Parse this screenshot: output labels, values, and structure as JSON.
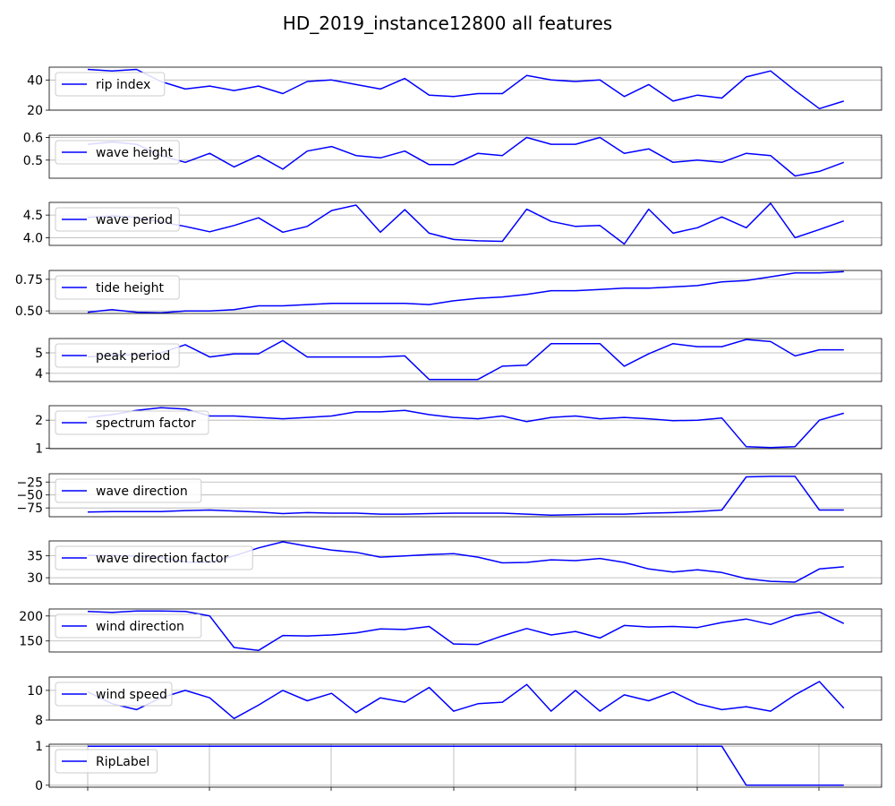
{
  "title": "HD_2019_instance12800 all features",
  "chart_data": {
    "type": "line",
    "title": "HD_2019_instance12800 all features",
    "line_color": "#0000ff",
    "grid": true,
    "legend_placement": "upper-left",
    "shared_x": true,
    "x_tick_labels_visible": false,
    "panels": [
      {
        "name": "rip index",
        "ylim": [
          20,
          48.5
        ],
        "yticks": [
          {
            "v": 20,
            "label": "20"
          },
          {
            "v": 40,
            "label": "40"
          }
        ],
        "values": [
          47,
          46,
          47,
          39,
          34,
          36,
          33,
          36,
          31,
          39,
          40,
          37,
          34,
          41,
          30,
          29,
          31,
          31,
          43,
          40,
          39,
          40,
          29,
          37,
          26,
          30,
          28,
          42,
          46,
          33,
          21,
          26
        ]
      },
      {
        "name": "wave height",
        "ylim": [
          0.42,
          0.61
        ],
        "yticks": [
          {
            "v": 0.5,
            "label": "0.5"
          },
          {
            "v": 0.6,
            "label": "0.6"
          }
        ],
        "values": [
          0.57,
          0.58,
          0.57,
          0.52,
          0.49,
          0.53,
          0.47,
          0.52,
          0.46,
          0.54,
          0.56,
          0.52,
          0.51,
          0.54,
          0.48,
          0.48,
          0.53,
          0.52,
          0.6,
          0.57,
          0.57,
          0.6,
          0.53,
          0.55,
          0.49,
          0.5,
          0.49,
          0.53,
          0.52,
          0.43,
          0.45,
          0.49
        ]
      },
      {
        "name": "wave period",
        "ylim": [
          3.83,
          4.78
        ],
        "yticks": [
          {
            "v": 4.0,
            "label": "4.0"
          },
          {
            "v": 4.5,
            "label": "4.5"
          }
        ],
        "values": [
          4.45,
          4.48,
          4.45,
          4.35,
          4.25,
          4.13,
          4.27,
          4.44,
          4.12,
          4.25,
          4.6,
          4.72,
          4.12,
          4.62,
          4.1,
          3.96,
          3.93,
          3.92,
          4.63,
          4.36,
          4.25,
          4.27,
          3.86,
          4.63,
          4.1,
          4.22,
          4.46,
          4.22,
          4.76,
          4.0,
          4.18,
          4.37
        ]
      },
      {
        "name": "tide height",
        "ylim": [
          0.48,
          0.82
        ],
        "yticks": [
          {
            "v": 0.5,
            "label": "0.50"
          },
          {
            "v": 0.75,
            "label": "0.75"
          }
        ],
        "values": [
          0.49,
          0.51,
          0.49,
          0.485,
          0.5,
          0.5,
          0.51,
          0.54,
          0.54,
          0.55,
          0.56,
          0.56,
          0.56,
          0.56,
          0.55,
          0.58,
          0.6,
          0.61,
          0.63,
          0.66,
          0.66,
          0.67,
          0.68,
          0.68,
          0.69,
          0.7,
          0.73,
          0.74,
          0.77,
          0.8,
          0.8,
          0.81
        ]
      },
      {
        "name": "peak period",
        "ylim": [
          3.6,
          5.7
        ],
        "yticks": [
          {
            "v": 4,
            "label": "4"
          },
          {
            "v": 5,
            "label": "5"
          }
        ],
        "values": [
          4.8,
          4.9,
          4.9,
          5.0,
          5.4,
          4.8,
          4.95,
          4.95,
          5.6,
          4.8,
          4.8,
          4.8,
          4.8,
          4.85,
          3.7,
          3.7,
          3.7,
          4.35,
          4.4,
          5.45,
          5.45,
          5.45,
          4.35,
          4.95,
          5.45,
          5.3,
          5.3,
          5.65,
          5.55,
          4.85,
          5.15,
          5.15
        ]
      },
      {
        "name": "spectrum factor",
        "ylim": [
          0.98,
          2.52
        ],
        "yticks": [
          {
            "v": 1,
            "label": "1"
          },
          {
            "v": 2,
            "label": "2"
          }
        ],
        "values": [
          2.1,
          2.2,
          2.35,
          2.45,
          2.4,
          2.15,
          2.15,
          2.1,
          2.05,
          2.1,
          2.15,
          2.3,
          2.3,
          2.35,
          2.2,
          2.1,
          2.05,
          2.15,
          1.95,
          2.1,
          2.15,
          2.05,
          2.1,
          2.05,
          1.98,
          2.0,
          2.08,
          1.05,
          1.02,
          1.05,
          2.0,
          2.25
        ]
      },
      {
        "name": "wave direction",
        "ylim": [
          -92,
          -9
        ],
        "yticks": [
          {
            "v": -75,
            "label": "−75"
          },
          {
            "v": -50,
            "label": "−50"
          },
          {
            "v": -25,
            "label": "−25"
          }
        ],
        "values": [
          -83,
          -82,
          -82,
          -82,
          -80,
          -79,
          -81,
          -83,
          -86,
          -84,
          -85,
          -85,
          -87,
          -87,
          -86,
          -85,
          -85,
          -85,
          -87,
          -89,
          -88,
          -87,
          -87,
          -85,
          -84,
          -82,
          -79,
          -15,
          -14,
          -14,
          -79,
          -79
        ]
      },
      {
        "name": "wave direction factor",
        "ylim": [
          28.6,
          38.4
        ],
        "yticks": [
          {
            "v": 30,
            "label": "30"
          },
          {
            "v": 35,
            "label": "35"
          }
        ],
        "values": [
          35.1,
          35.1,
          35.0,
          34.6,
          33.6,
          33.5,
          35.0,
          36.8,
          38.2,
          37.2,
          36.3,
          35.8,
          34.7,
          35.0,
          35.3,
          35.5,
          34.7,
          33.4,
          33.5,
          34.1,
          33.9,
          34.4,
          33.5,
          32.0,
          31.3,
          31.8,
          31.2,
          29.8,
          29.2,
          29.0,
          32.0,
          32.5
        ]
      },
      {
        "name": "wind direction",
        "ylim": [
          128,
          214
        ],
        "yticks": [
          {
            "v": 150,
            "label": "150"
          },
          {
            "v": 200,
            "label": "200"
          }
        ],
        "values": [
          209,
          207,
          210,
          210,
          209,
          200,
          137,
          131,
          161,
          160,
          162,
          166,
          174,
          173,
          179,
          144,
          143,
          160,
          175,
          162,
          169,
          156,
          181,
          178,
          179,
          177,
          187,
          194,
          183,
          201,
          208,
          185
        ]
      },
      {
        "name": "wind speed",
        "ylim": [
          8.0,
          10.9
        ],
        "yticks": [
          {
            "v": 8,
            "label": "8"
          },
          {
            "v": 10,
            "label": "10"
          }
        ],
        "values": [
          9.9,
          9.1,
          8.7,
          9.5,
          10.0,
          9.5,
          8.1,
          9.0,
          10.0,
          9.3,
          9.8,
          8.5,
          9.5,
          9.2,
          10.2,
          8.6,
          9.1,
          9.2,
          10.4,
          8.6,
          10.0,
          8.6,
          9.7,
          9.3,
          9.9,
          9.1,
          8.7,
          8.9,
          8.6,
          9.7,
          10.6,
          8.8
        ]
      },
      {
        "name": "RipLabel",
        "ylim": [
          -0.05,
          1.05
        ],
        "yticks": [
          {
            "v": 0,
            "label": "0"
          },
          {
            "v": 1,
            "label": "1"
          }
        ],
        "values": [
          1,
          1,
          1,
          1,
          1,
          1,
          1,
          1,
          1,
          1,
          1,
          1,
          1,
          1,
          1,
          1,
          1,
          1,
          1,
          1,
          1,
          1,
          1,
          1,
          1,
          1,
          1,
          0,
          0,
          0,
          0,
          0
        ]
      }
    ]
  }
}
